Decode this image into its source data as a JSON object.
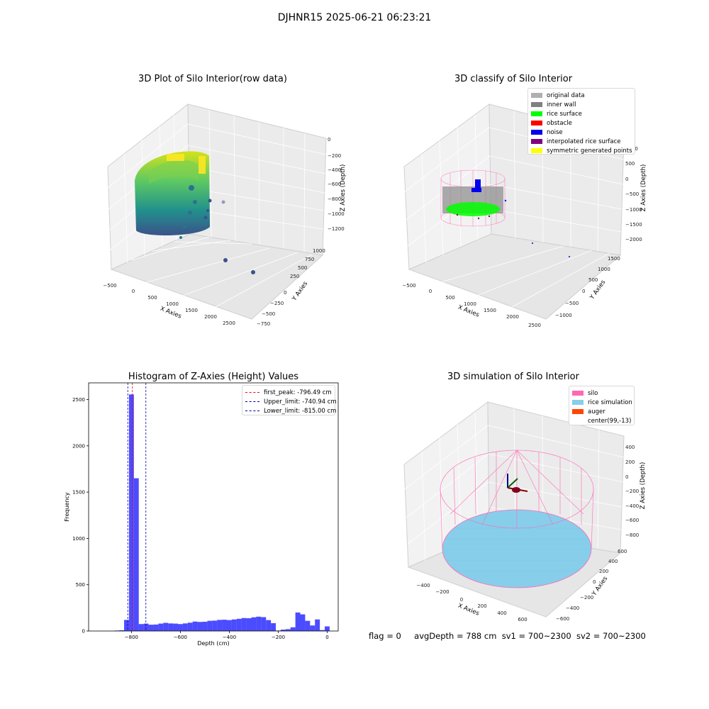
{
  "figure": {
    "title": "DJHNR15 2025-06-21 06:23:21"
  },
  "panels": {
    "raw": {
      "title": "3D Plot of Silo Interior(row data)",
      "xlabel": "X Axies",
      "ylabel": "Y Axies",
      "zlabel": "Z Axies (Depth)",
      "xticks": [
        "−500",
        "0",
        "500",
        "1000",
        "1500",
        "2000",
        "2500"
      ],
      "yticks": [
        "−750",
        "−500",
        "−250",
        "0",
        "250",
        "500",
        "750",
        "1000"
      ],
      "zticks": [
        "0",
        "−200",
        "−400",
        "−600",
        "−800",
        "−1000",
        "−1200"
      ]
    },
    "classify": {
      "title": "3D classify of Silo Interior",
      "xlabel": "X Axies",
      "ylabel": "Y Axies",
      "zlabel": "Z Axies (Depth)",
      "xticks": [
        "−500",
        "0",
        "500",
        "1000",
        "1500",
        "2000",
        "2500"
      ],
      "yticks": [
        "−1000",
        "−500",
        "0",
        "500",
        "1000",
        "1500"
      ],
      "zticks": [
        "1000",
        "500",
        "0",
        "−500",
        "−1000",
        "−1500",
        "−2000"
      ],
      "legend": [
        {
          "label": "original data",
          "color": "#b0b0b0"
        },
        {
          "label": "inner wall",
          "color": "#808080"
        },
        {
          "label": "rice surface",
          "color": "#00ff00"
        },
        {
          "label": "obstacle",
          "color": "#ff0000"
        },
        {
          "label": "noise",
          "color": "#0000ee"
        },
        {
          "label": "interpolated rice surface",
          "color": "#800080"
        },
        {
          "label": "symmetric generated points",
          "color": "#ffff00"
        }
      ]
    },
    "simulation": {
      "title": "3D simulation of Silo Interior",
      "xlabel": "X Axies",
      "ylabel": "Y Axies",
      "zlabel": "Z Axies (Depth)",
      "xticks": [
        "−400",
        "−200",
        "0",
        "200",
        "400",
        "600"
      ],
      "yticks": [
        "−600",
        "−400",
        "−200",
        "0",
        "200",
        "400",
        "600"
      ],
      "zticks": [
        "400",
        "200",
        "0",
        "−200",
        "−400",
        "−600",
        "−800"
      ],
      "legend": [
        {
          "label": "silo",
          "color": "#ff69b4"
        },
        {
          "label": "rice simulation",
          "color": "#87ceeb"
        },
        {
          "label": "auger",
          "color": "#ff4500"
        },
        {
          "label": "center(99,-13)",
          "color": ""
        }
      ]
    }
  },
  "chart_data": {
    "type": "bar",
    "title": "Histogram of Z-Axies (Height) Values",
    "xlabel": "Depth (cm)",
    "ylabel": "Frequency",
    "xlim": [
      -975,
      45
    ],
    "ylim": [
      0,
      2680
    ],
    "xticks": [
      -800,
      -600,
      -400,
      -200,
      0
    ],
    "yticks": [
      0,
      500,
      1000,
      1500,
      2000,
      2500
    ],
    "bin_width": 20,
    "bins": [
      {
        "x": -860,
        "value": 5
      },
      {
        "x": -840,
        "value": 8
      },
      {
        "x": -820,
        "value": 120
      },
      {
        "x": -800,
        "value": 2555
      },
      {
        "x": -780,
        "value": 1650
      },
      {
        "x": -760,
        "value": 75
      },
      {
        "x": -740,
        "value": 80
      },
      {
        "x": -720,
        "value": 68
      },
      {
        "x": -700,
        "value": 70
      },
      {
        "x": -680,
        "value": 80
      },
      {
        "x": -660,
        "value": 88
      },
      {
        "x": -640,
        "value": 82
      },
      {
        "x": -620,
        "value": 80
      },
      {
        "x": -600,
        "value": 75
      },
      {
        "x": -580,
        "value": 82
      },
      {
        "x": -560,
        "value": 90
      },
      {
        "x": -540,
        "value": 102
      },
      {
        "x": -520,
        "value": 98
      },
      {
        "x": -500,
        "value": 100
      },
      {
        "x": -480,
        "value": 110
      },
      {
        "x": -460,
        "value": 112
      },
      {
        "x": -440,
        "value": 120
      },
      {
        "x": -420,
        "value": 122
      },
      {
        "x": -400,
        "value": 118
      },
      {
        "x": -380,
        "value": 125
      },
      {
        "x": -360,
        "value": 132
      },
      {
        "x": -340,
        "value": 140
      },
      {
        "x": -320,
        "value": 138
      },
      {
        "x": -300,
        "value": 148
      },
      {
        "x": -280,
        "value": 155
      },
      {
        "x": -260,
        "value": 150
      },
      {
        "x": -240,
        "value": 118
      },
      {
        "x": -220,
        "value": 85
      },
      {
        "x": -200,
        "value": 5
      },
      {
        "x": -180,
        "value": 15
      },
      {
        "x": -160,
        "value": 20
      },
      {
        "x": -140,
        "value": 40
      },
      {
        "x": -120,
        "value": 200
      },
      {
        "x": -100,
        "value": 180
      },
      {
        "x": -80,
        "value": 110
      },
      {
        "x": -60,
        "value": 60
      },
      {
        "x": -40,
        "value": 125
      },
      {
        "x": -20,
        "value": 10
      },
      {
        "x": 0,
        "value": 50
      }
    ],
    "lines": [
      {
        "label": "first_peak: -796.49 cm",
        "x": -796.49,
        "color": "#ff0000"
      },
      {
        "label": "Upper_limit: -740.94 cm",
        "x": -740.94,
        "color": "#0000aa"
      },
      {
        "label": "Lower_limit: -815.00 cm",
        "x": -815.0,
        "color": "#0000aa"
      }
    ],
    "bar_color": "#0000ff"
  },
  "footer": {
    "flag": "flag = 0",
    "avg": "avgDepth = 788 cm",
    "sv1": "sv1 = 700~2300",
    "sv2": "sv2 = 700~2300"
  }
}
